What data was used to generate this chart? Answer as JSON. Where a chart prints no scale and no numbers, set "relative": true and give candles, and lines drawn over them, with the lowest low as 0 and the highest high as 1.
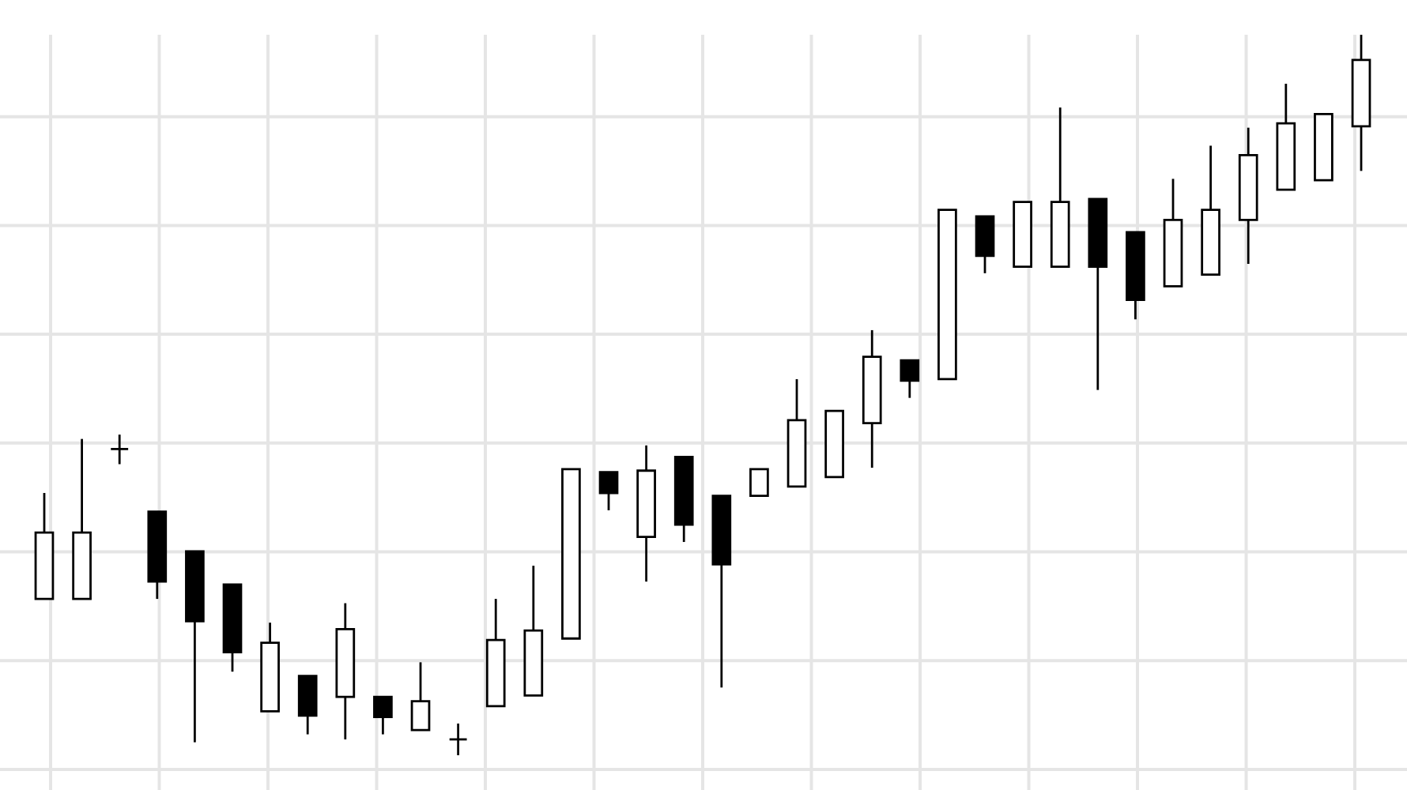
{
  "chart_data": {
    "type": "candlestick",
    "relative": true,
    "grid": true,
    "categories": [
      null,
      null,
      null,
      null,
      null,
      null,
      null,
      null,
      null,
      null,
      null,
      null,
      null,
      null,
      null,
      null,
      null,
      null,
      null,
      null,
      null,
      null,
      null,
      null,
      null,
      null,
      null,
      null,
      null,
      null,
      null,
      null,
      null,
      null,
      null,
      null
    ],
    "ohlc": [
      [
        0.217,
        0.364,
        0.217,
        0.309
      ],
      [
        0.217,
        0.439,
        0.217,
        0.309
      ],
      [
        0.425,
        0.445,
        0.404,
        0.425
      ],
      [
        0.338,
        0.338,
        0.217,
        0.241
      ],
      [
        0.283,
        0.283,
        0.018,
        0.186
      ],
      [
        0.237,
        0.237,
        0.116,
        0.143
      ],
      [
        0.061,
        0.184,
        0.061,
        0.156
      ],
      [
        0.11,
        0.11,
        0.029,
        0.055
      ],
      [
        0.081,
        0.211,
        0.022,
        0.175
      ],
      [
        0.081,
        0.081,
        0.029,
        0.053
      ],
      [
        0.035,
        0.129,
        0.035,
        0.075
      ],
      [
        0.022,
        0.044,
        0,
        0.022
      ],
      [
        0.068,
        0.217,
        0.068,
        0.16
      ],
      [
        0.083,
        0.263,
        0.083,
        0.173
      ],
      [
        0.162,
        0.397,
        0.162,
        0.397
      ],
      [
        0.393,
        0.393,
        0.34,
        0.364
      ],
      [
        0.303,
        0.43,
        0.241,
        0.395
      ],
      [
        0.414,
        0.414,
        0.296,
        0.32
      ],
      [
        0.36,
        0.36,
        0.094,
        0.265
      ],
      [
        0.36,
        0.397,
        0.36,
        0.397
      ],
      [
        0.373,
        0.522,
        0.373,
        0.465
      ],
      [
        0.386,
        0.478,
        0.386,
        0.478
      ],
      [
        0.461,
        0.59,
        0.399,
        0.553
      ],
      [
        0.548,
        0.548,
        0.496,
        0.52
      ],
      [
        0.522,
        0.757,
        0.522,
        0.757
      ],
      [
        0.748,
        0.748,
        0.669,
        0.693
      ],
      [
        0.678,
        0.768,
        0.678,
        0.768
      ],
      [
        0.678,
        0.899,
        0.678,
        0.768
      ],
      [
        0.772,
        0.772,
        0.507,
        0.678
      ],
      [
        0.726,
        0.726,
        0.605,
        0.632
      ],
      [
        0.651,
        0.8,
        0.651,
        0.743
      ],
      [
        0.667,
        0.846,
        0.667,
        0.757
      ],
      [
        0.743,
        0.871,
        0.682,
        0.833
      ],
      [
        0.785,
        0.932,
        0.785,
        0.877
      ],
      [
        0.798,
        0.89,
        0.798,
        0.89
      ],
      [
        0.873,
        1,
        0.811,
        0.965
      ]
    ]
  }
}
